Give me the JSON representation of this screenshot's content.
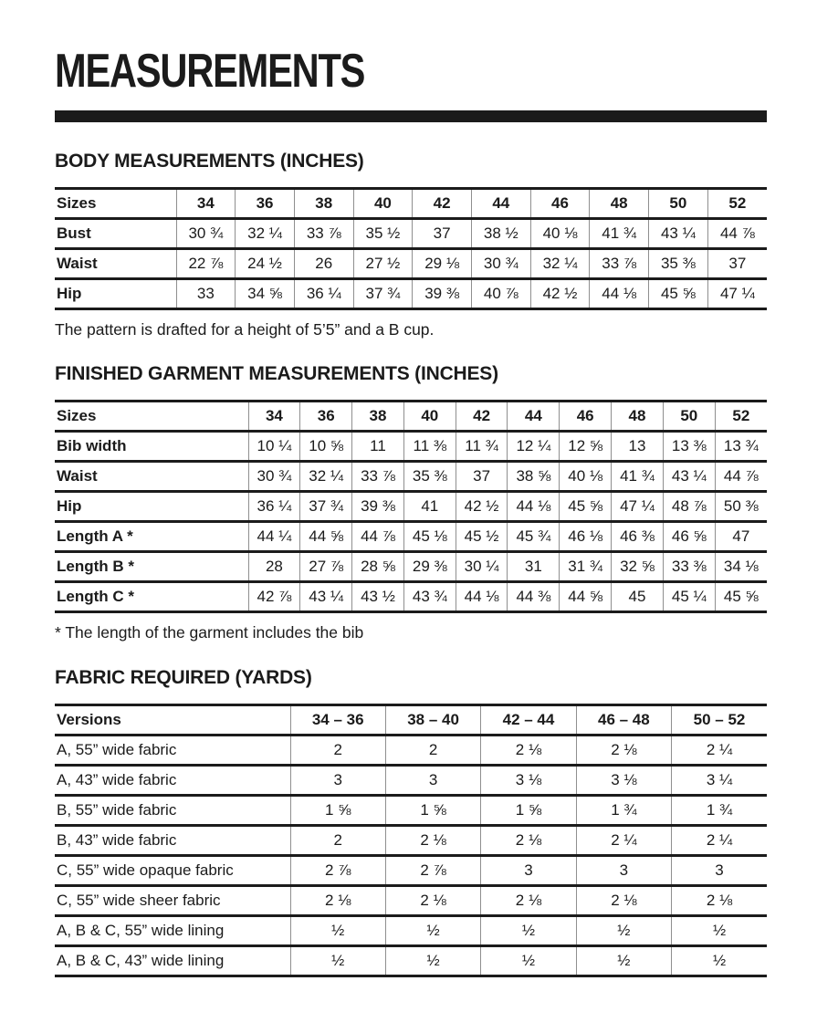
{
  "page_title": "MEASUREMENTS",
  "sections": {
    "body": {
      "heading": "BODY MEASUREMENTS (INCHES)",
      "note": "The pattern is drafted for a height of 5’5” and a B cup.",
      "table": {
        "header_label": "Sizes",
        "columns": [
          "34",
          "36",
          "38",
          "40",
          "42",
          "44",
          "46",
          "48",
          "50",
          "52"
        ],
        "rows": [
          {
            "label": "Bust",
            "values": [
              "30 ¾",
              "32 ¼",
              "33 ⅞",
              "35 ½",
              "37",
              "38 ½",
              "40 ⅛",
              "41 ¾",
              "43 ¼",
              "44 ⅞"
            ]
          },
          {
            "label": "Waist",
            "values": [
              "22 ⅞",
              "24 ½",
              "26",
              "27 ½",
              "29 ⅛",
              "30 ¾",
              "32 ¼",
              "33 ⅞",
              "35 ⅜",
              "37"
            ]
          },
          {
            "label": "Hip",
            "values": [
              "33",
              "34 ⅝",
              "36 ¼",
              "37 ¾",
              "39 ⅜",
              "40 ⅞",
              "42 ½",
              "44 ⅛",
              "45 ⅝",
              "47 ¼"
            ]
          }
        ]
      }
    },
    "finished": {
      "heading": "FINISHED GARMENT MEASUREMENTS (INCHES)",
      "note": "* The length of the garment includes the bib",
      "table": {
        "header_label": "Sizes",
        "columns": [
          "34",
          "36",
          "38",
          "40",
          "42",
          "44",
          "46",
          "48",
          "50",
          "52"
        ],
        "rows": [
          {
            "label": "Bib width",
            "values": [
              "10 ¼",
              "10 ⅝",
              "11",
              "11 ⅜",
              "11 ¾",
              "12 ¼",
              "12 ⅝",
              "13",
              "13 ⅜",
              "13 ¾"
            ]
          },
          {
            "label": "Waist",
            "values": [
              "30 ¾",
              "32 ¼",
              "33 ⅞",
              "35 ⅜",
              "37",
              "38 ⅝",
              "40 ⅛",
              "41 ¾",
              "43 ¼",
              "44 ⅞"
            ]
          },
          {
            "label": "Hip",
            "values": [
              "36 ¼",
              "37 ¾",
              "39 ⅜",
              "41",
              "42 ½",
              "44 ⅛",
              "45 ⅝",
              "47 ¼",
              "48 ⅞",
              "50 ⅜"
            ]
          },
          {
            "label": "Length A *",
            "values": [
              "44 ¼",
              "44 ⅝",
              "44 ⅞",
              "45 ⅛",
              "45 ½",
              "45 ¾",
              "46 ⅛",
              "46 ⅜",
              "46 ⅝",
              "47"
            ]
          },
          {
            "label": "Length B *",
            "values": [
              "28",
              "27 ⅞",
              "28 ⅝",
              "29 ⅜",
              "30 ¼",
              "31",
              "31 ¾",
              "32 ⅝",
              "33 ⅜",
              "34 ⅛"
            ]
          },
          {
            "label": "Length C *",
            "values": [
              "42 ⅞",
              "43 ¼",
              "43 ½",
              "43 ¾",
              "44 ⅛",
              "44 ⅜",
              "44 ⅝",
              "45",
              "45 ¼",
              "45 ⅝"
            ]
          }
        ]
      }
    },
    "fabric": {
      "heading": "FABRIC REQUIRED (YARDS)",
      "table": {
        "header_label": "Versions",
        "columns": [
          "34 – 36",
          "38 – 40",
          "42 – 44",
          "46 – 48",
          "50 – 52"
        ],
        "rows": [
          {
            "label": "A, 55” wide fabric",
            "values": [
              "2",
              "2",
              "2 ⅛",
              "2 ⅛",
              "2 ¼"
            ]
          },
          {
            "label": "A, 43” wide fabric",
            "values": [
              "3",
              "3",
              "3 ⅛",
              "3 ⅛",
              "3 ¼"
            ]
          },
          {
            "label": "B, 55” wide fabric",
            "values": [
              "1 ⅝",
              "1 ⅝",
              "1 ⅝",
              "1 ¾",
              "1 ¾"
            ]
          },
          {
            "label": "B, 43” wide fabric",
            "values": [
              "2",
              "2 ⅛",
              "2 ⅛",
              "2 ¼",
              "2 ¼"
            ]
          },
          {
            "label": "C, 55” wide opaque fabric",
            "values": [
              "2 ⅞",
              "2 ⅞",
              "3",
              "3",
              "3"
            ]
          },
          {
            "label": "C, 55” wide sheer fabric",
            "values": [
              "2 ⅛",
              "2 ⅛",
              "2 ⅛",
              "2 ⅛",
              "2 ⅛"
            ]
          },
          {
            "label": "A, B & C, 55” wide lining",
            "values": [
              "½",
              "½",
              "½",
              "½",
              "½"
            ]
          },
          {
            "label": "A, B & C, 43” wide lining",
            "values": [
              "½",
              "½",
              "½",
              "½",
              "½"
            ]
          }
        ]
      }
    }
  },
  "colors": {
    "text": "#1b1b1b",
    "rule_black": "#1b1b1b",
    "divider_gray": "#8f8f8f",
    "background": "#ffffff"
  }
}
